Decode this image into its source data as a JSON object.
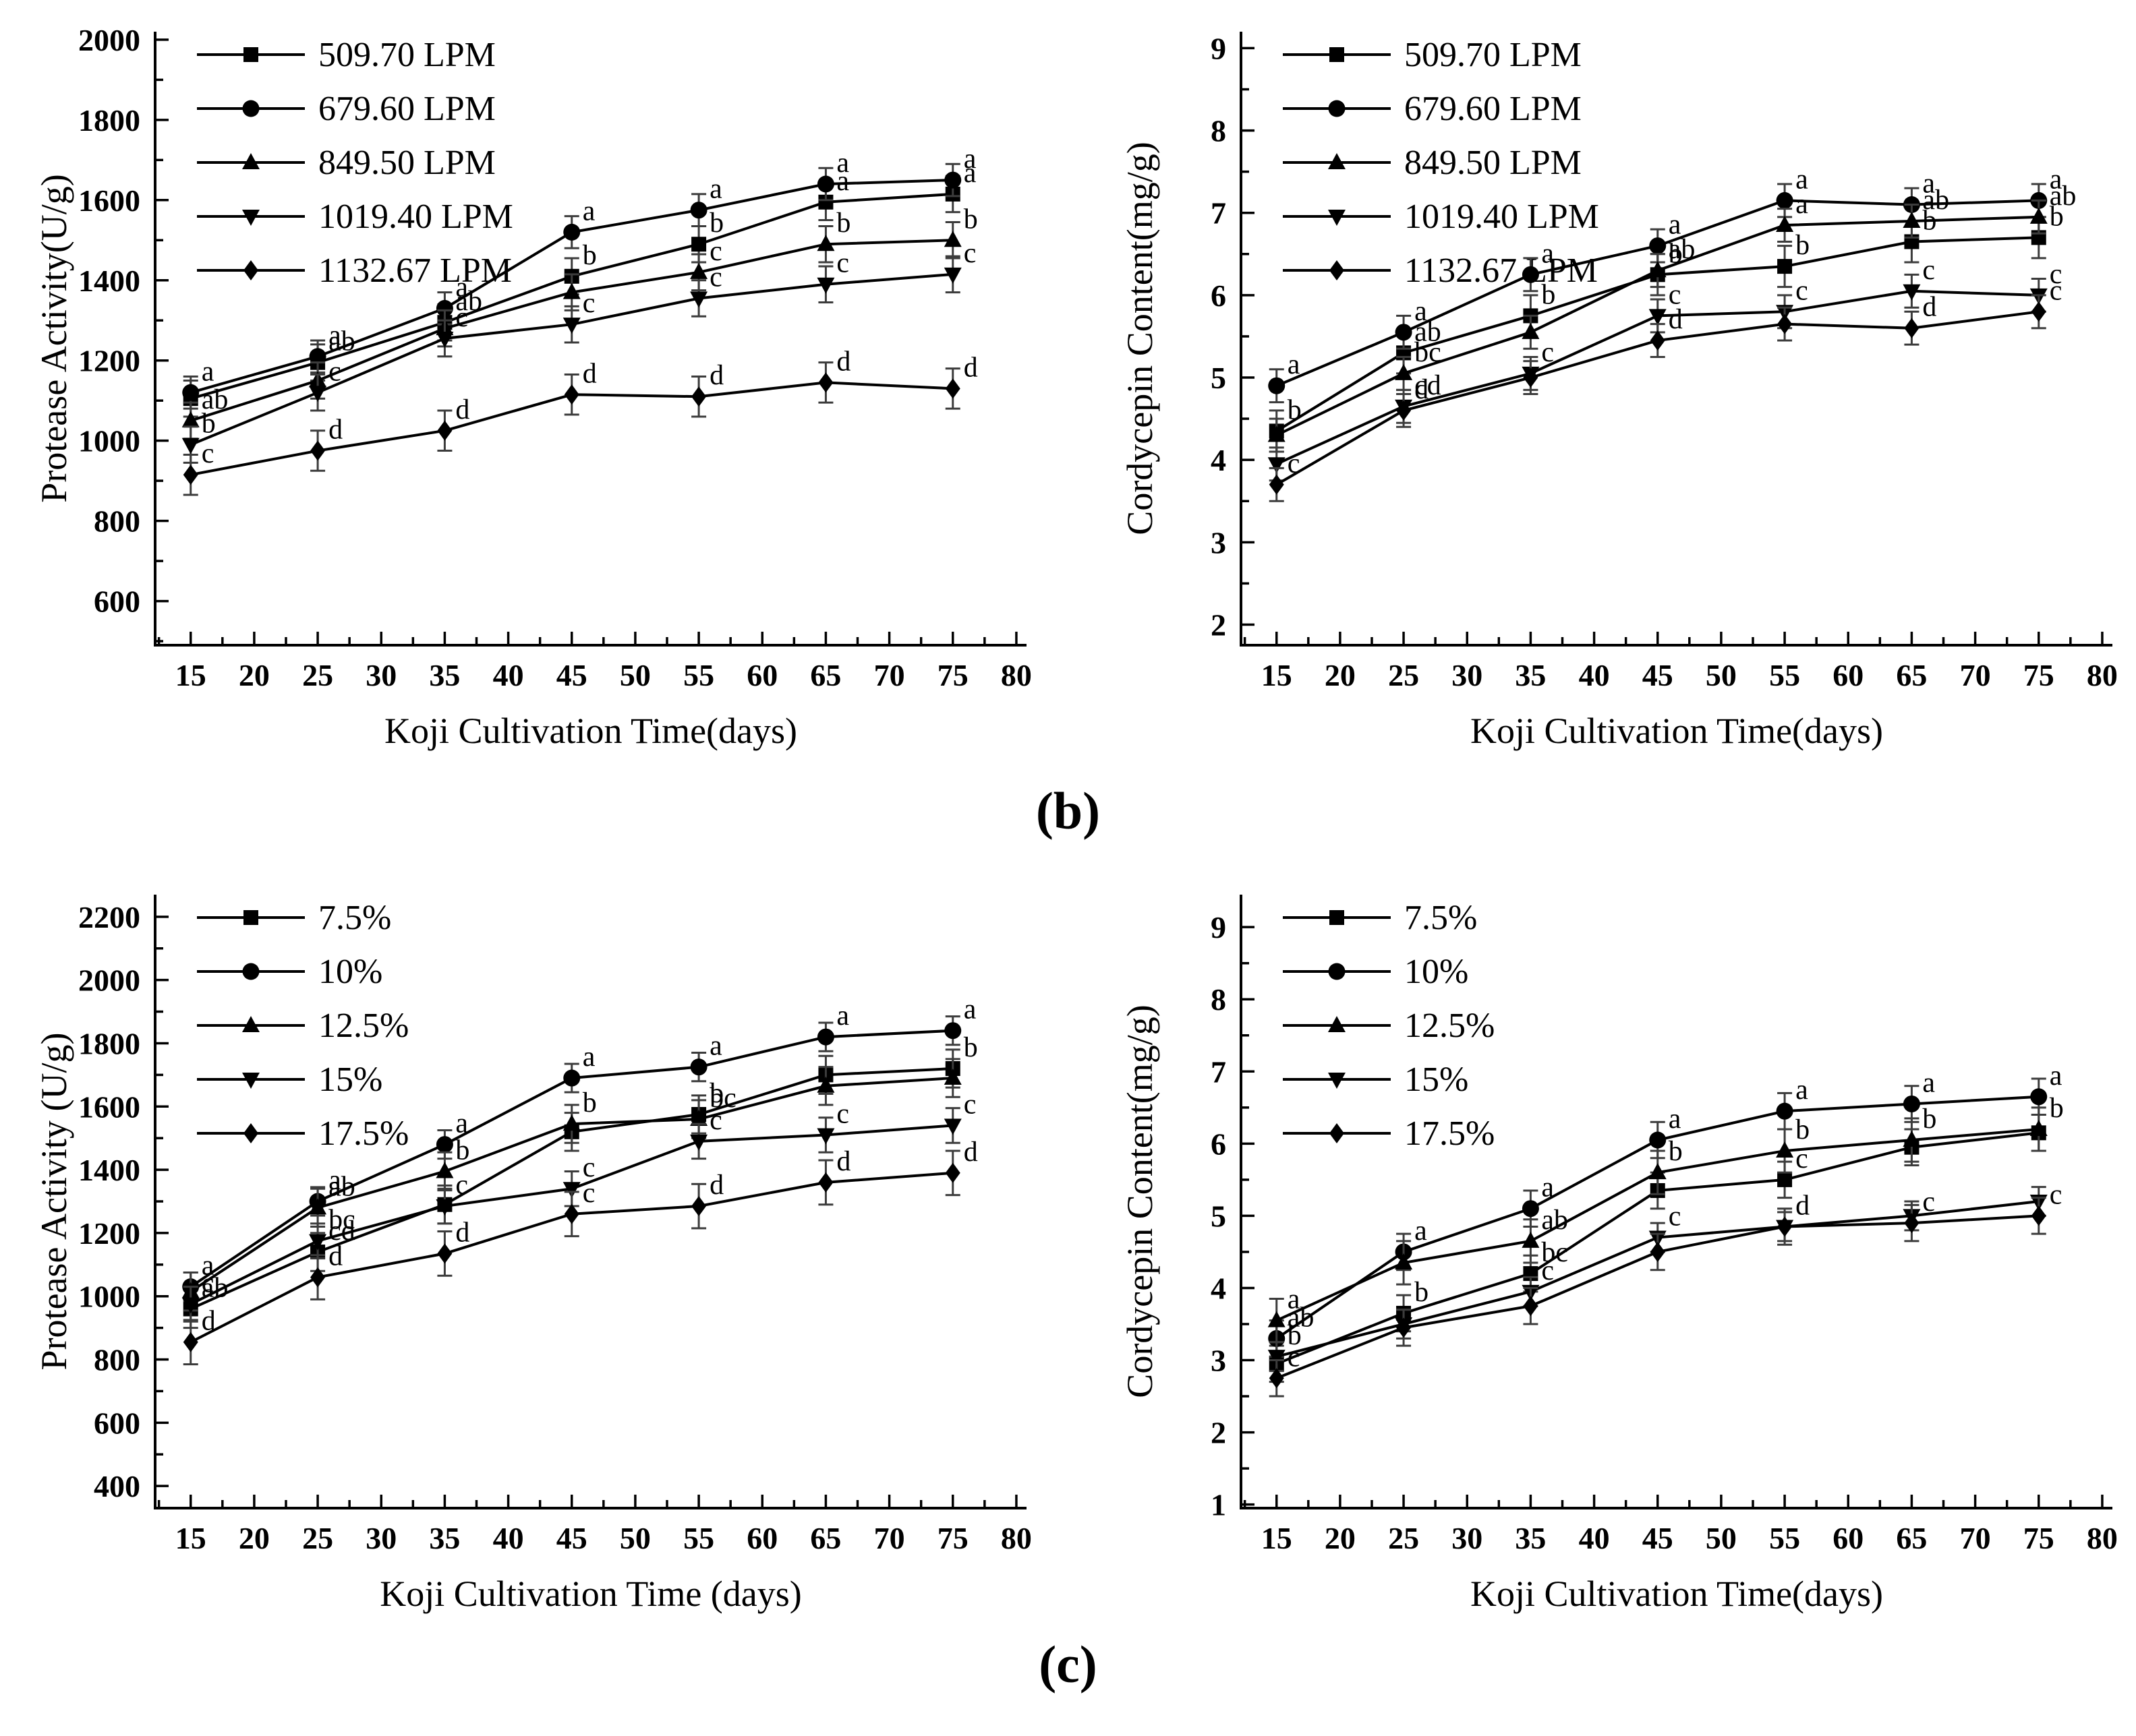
{
  "page": {
    "background": "#ffffff",
    "ink_color": "#000000",
    "errorbar_color": "#3c3c3c"
  },
  "captions": {
    "panel_b": "(b)",
    "panel_c": "(c)"
  },
  "chart_data": [
    {
      "id": "protease-activity-lpm",
      "panel": "b",
      "position": "top-left",
      "type": "line",
      "title": "",
      "xlabel": "Koji Cultivation Time(days)",
      "ylabel": "Protease Activity(U/g)",
      "x": [
        15,
        25,
        35,
        45,
        55,
        65,
        75
      ],
      "xlim": [
        12.2,
        80.8
      ],
      "ylim": [
        490,
        2020
      ],
      "xticks": {
        "major": [
          15,
          20,
          25,
          30,
          35,
          40,
          45,
          50,
          55,
          60,
          65,
          70,
          75,
          80
        ],
        "minor_step": 2.5
      },
      "yticks": {
        "major": [
          600,
          800,
          1000,
          1200,
          1400,
          1600,
          1800,
          2000
        ],
        "minor_step": 100
      },
      "grid": false,
      "legend_position": "top-left-inside",
      "series": [
        {
          "name": "509.70  LPM",
          "marker": "square",
          "err": 45,
          "values": [
            1105,
            1195,
            1295,
            1410,
            1490,
            1595,
            1615
          ],
          "point_labels": [
            "",
            "ab",
            "ab",
            "b",
            "b",
            "a",
            "a"
          ]
        },
        {
          "name": "679.60  LPM",
          "marker": "circle",
          "err": 40,
          "values": [
            1120,
            1210,
            1330,
            1520,
            1575,
            1640,
            1650
          ],
          "point_labels": [
            "a",
            "a",
            "a",
            "a",
            "a",
            "a",
            "a"
          ]
        },
        {
          "name": "849.50  LPM",
          "marker": "triangle-up",
          "err": 45,
          "values": [
            1050,
            1150,
            1280,
            1370,
            1420,
            1490,
            1500
          ],
          "point_labels": [
            "ab",
            "",
            "",
            "",
            "c",
            "b",
            "b"
          ]
        },
        {
          "name": "1019.40 LPM",
          "marker": "triangle-down",
          "err": 45,
          "values": [
            990,
            1120,
            1255,
            1290,
            1355,
            1390,
            1415
          ],
          "point_labels": [
            "b",
            "c",
            "c",
            "c",
            "c",
            "c",
            "c"
          ]
        },
        {
          "name": "1132.67 LPM",
          "marker": "diamond",
          "err": 50,
          "values": [
            915,
            975,
            1025,
            1115,
            1110,
            1145,
            1130
          ],
          "point_labels": [
            "c",
            "d",
            "d",
            "d",
            "d",
            "d",
            "d"
          ]
        }
      ]
    },
    {
      "id": "cordycepin-content-lpm",
      "panel": "b",
      "position": "top-right",
      "type": "line",
      "title": "",
      "xlabel": "Koji Cultivation Time(days)",
      "ylabel": "Cordycepin Content(mg/g)",
      "x": [
        15,
        25,
        35,
        45,
        55,
        65,
        75
      ],
      "xlim": [
        12.2,
        80.8
      ],
      "ylim": [
        1.75,
        9.2
      ],
      "xticks": {
        "major": [
          15,
          20,
          25,
          30,
          35,
          40,
          45,
          50,
          55,
          60,
          65,
          70,
          75,
          80
        ],
        "minor_step": 2.5
      },
      "yticks": {
        "major": [
          2,
          3,
          4,
          5,
          6,
          7,
          8,
          9
        ],
        "minor_step": 0.5
      },
      "grid": false,
      "legend_position": "top-left-inside",
      "series": [
        {
          "name": "509.70  LPM",
          "marker": "square",
          "err": 0.25,
          "values": [
            4.35,
            5.3,
            5.75,
            6.25,
            6.35,
            6.65,
            6.7
          ],
          "point_labels": [
            "b",
            "ab",
            "b",
            "b",
            "b",
            "b",
            "b"
          ]
        },
        {
          "name": "679.60  LPM",
          "marker": "circle",
          "err": 0.2,
          "values": [
            4.9,
            5.55,
            6.25,
            6.6,
            7.15,
            7.1,
            7.15
          ],
          "point_labels": [
            "a",
            "a",
            "a",
            "a",
            "a",
            "a",
            "a"
          ]
        },
        {
          "name": "849.50  LPM",
          "marker": "triangle-up",
          "err": 0.2,
          "values": [
            4.3,
            5.05,
            5.55,
            6.3,
            6.85,
            6.9,
            6.95
          ],
          "point_labels": [
            "",
            "bc",
            "",
            "ab",
            "a",
            "ab",
            "ab"
          ]
        },
        {
          "name": "1019.40 LPM",
          "marker": "triangle-down",
          "err": 0.2,
          "values": [
            3.95,
            4.65,
            5.05,
            5.75,
            5.8,
            6.05,
            6.0
          ],
          "point_labels": [
            "",
            "cd",
            "c",
            "c",
            "c",
            "c",
            "c"
          ]
        },
        {
          "name": "1132.67 LPM",
          "marker": "diamond",
          "err": 0.2,
          "values": [
            3.7,
            4.6,
            5.0,
            5.45,
            5.65,
            5.6,
            5.8
          ],
          "point_labels": [
            "c",
            "d",
            "",
            "d",
            "",
            "d",
            "c"
          ]
        }
      ]
    },
    {
      "id": "protease-activity-percent",
      "panel": "c",
      "position": "bottom-left",
      "type": "line",
      "title": "",
      "xlabel": "Koji Cultivation Time (days)",
      "ylabel": "Protease Activity (U/g)",
      "x": [
        15,
        25,
        35,
        45,
        55,
        65,
        75
      ],
      "xlim": [
        12.2,
        80.8
      ],
      "ylim": [
        330,
        2270
      ],
      "xticks": {
        "major": [
          15,
          20,
          25,
          30,
          35,
          40,
          45,
          50,
          55,
          60,
          65,
          70,
          75,
          80
        ],
        "minor_step": 2.5
      },
      "yticks": {
        "major": [
          400,
          600,
          800,
          1000,
          1200,
          1400,
          1600,
          1800,
          2000,
          2200
        ],
        "minor_step": 100
      },
      "grid": false,
      "legend_position": "top-left-inside",
      "series": [
        {
          "name": "7.5%",
          "marker": "square",
          "err": 60,
          "values": [
            960,
            1140,
            1290,
            1520,
            1575,
            1700,
            1720
          ],
          "point_labels": [
            "ab",
            "cd",
            "",
            "",
            "b",
            "",
            "b"
          ]
        },
        {
          "name": "10%",
          "marker": "circle",
          "err": 45,
          "values": [
            1030,
            1300,
            1480,
            1690,
            1725,
            1820,
            1840
          ],
          "point_labels": [
            "a",
            "a",
            "a",
            "a",
            "a",
            "a",
            "a"
          ]
        },
        {
          "name": "12.5%",
          "marker": "triangle-up",
          "err": 60,
          "values": [
            1015,
            1280,
            1395,
            1545,
            1560,
            1665,
            1690
          ],
          "point_labels": [
            "",
            "ab",
            "b",
            "b",
            "bc",
            "",
            ""
          ]
        },
        {
          "name": "15%",
          "marker": "triangle-down",
          "err": 55,
          "values": [
            975,
            1175,
            1285,
            1340,
            1490,
            1510,
            1540
          ],
          "point_labels": [
            "c",
            "bc",
            "c",
            "c",
            "c",
            "c",
            "c"
          ]
        },
        {
          "name": "17.5%",
          "marker": "diamond",
          "err": 70,
          "values": [
            855,
            1060,
            1135,
            1260,
            1285,
            1360,
            1390
          ],
          "point_labels": [
            "d",
            "d",
            "d",
            "c",
            "d",
            "d",
            "d"
          ]
        }
      ]
    },
    {
      "id": "cordycepin-content-percent",
      "panel": "c",
      "position": "bottom-right",
      "type": "line",
      "title": "",
      "xlabel": "Koji Cultivation Time(days)",
      "ylabel": "Cordycepin Content(mg/g)",
      "x": [
        15,
        25,
        35,
        45,
        55,
        65,
        75
      ],
      "xlim": [
        12.2,
        80.8
      ],
      "ylim": [
        0.95,
        9.45
      ],
      "xticks": {
        "major": [
          15,
          20,
          25,
          30,
          35,
          40,
          45,
          50,
          55,
          60,
          65,
          70,
          75,
          80
        ],
        "minor_step": 2.5
      },
      "yticks": {
        "major": [
          1,
          2,
          3,
          4,
          5,
          6,
          7,
          8,
          9
        ],
        "minor_step": 0.5
      },
      "grid": false,
      "legend_position": "top-left-inside",
      "series": [
        {
          "name": "7.5%",
          "marker": "square",
          "err": 0.25,
          "values": [
            2.95,
            3.65,
            4.2,
            5.35,
            5.5,
            5.95,
            6.15
          ],
          "point_labels": [
            "",
            "b",
            "bc",
            "",
            "c",
            "",
            ""
          ]
        },
        {
          "name": "10%",
          "marker": "circle",
          "err": 0.25,
          "values": [
            3.3,
            4.5,
            5.1,
            6.05,
            6.45,
            6.55,
            6.65
          ],
          "point_labels": [
            "ab",
            "a",
            "a",
            "a",
            "a",
            "a",
            "a"
          ]
        },
        {
          "name": "12.5%",
          "marker": "triangle-up",
          "err": 0.3,
          "values": [
            3.55,
            4.35,
            4.65,
            5.6,
            5.9,
            6.05,
            6.2
          ],
          "point_labels": [
            "a",
            "",
            "ab",
            "b",
            "b",
            "b",
            "b"
          ]
        },
        {
          "name": "15%",
          "marker": "triangle-down",
          "err": 0.2,
          "values": [
            3.05,
            3.5,
            3.95,
            4.7,
            4.85,
            5.0,
            5.2
          ],
          "point_labels": [
            "b",
            "",
            "c",
            "c",
            "",
            "",
            ""
          ]
        },
        {
          "name": "17.5%",
          "marker": "diamond",
          "err": 0.25,
          "values": [
            2.75,
            3.45,
            3.75,
            4.5,
            4.85,
            4.9,
            5.0
          ],
          "point_labels": [
            "c",
            "",
            "",
            "",
            "d",
            "c",
            "c"
          ]
        }
      ]
    }
  ]
}
